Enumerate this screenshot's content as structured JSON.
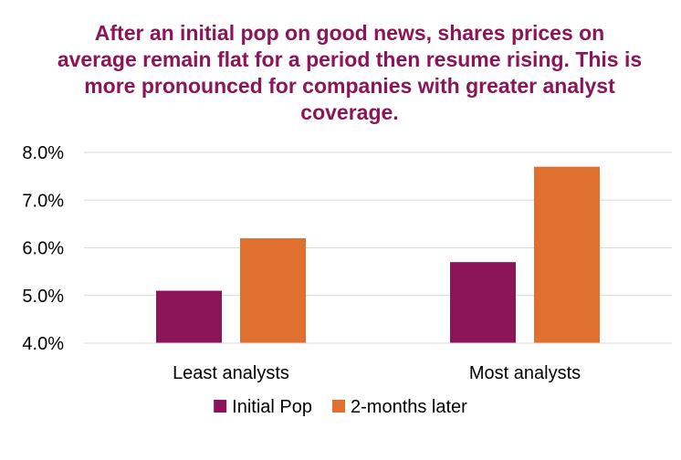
{
  "chart_data": {
    "type": "bar",
    "title": "After an initial pop on good news, shares prices on average remain flat for a period then resume rising.  This is more pronounced for companies with greater analyst coverage.",
    "categories": [
      "Least analysts",
      "Most analysts"
    ],
    "series": [
      {
        "name": "Initial Pop",
        "values": [
          5.1,
          5.7
        ],
        "color": "#8b1558"
      },
      {
        "name": "2-months later",
        "values": [
          6.2,
          7.7
        ],
        "color": "#e07030"
      }
    ],
    "xlabel": "",
    "ylabel": "",
    "ylim": [
      4.0,
      8.0
    ],
    "yticks": [
      "4.0%",
      "5.0%",
      "6.0%",
      "7.0%",
      "8.0%"
    ],
    "grid": true,
    "legend_position": "bottom"
  }
}
